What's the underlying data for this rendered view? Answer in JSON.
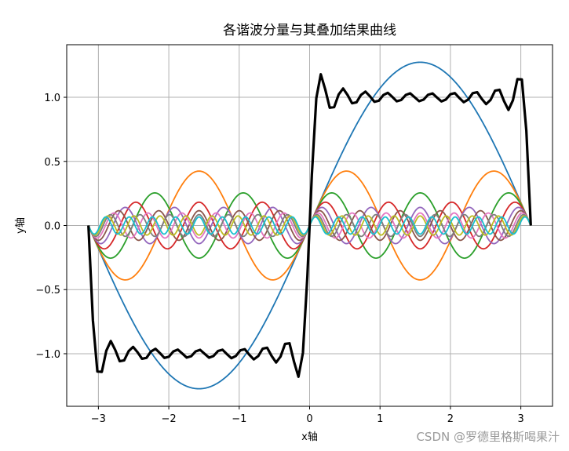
{
  "chart_data": {
    "type": "line",
    "title": "各谐波分量与其叠加结果曲线",
    "xlabel": "x轴",
    "ylabel": "y轴",
    "xlim": [
      -3.45,
      3.45
    ],
    "ylim": [
      -1.41,
      1.41
    ],
    "xticks": [
      -3,
      -2,
      -1,
      0,
      1,
      2,
      3
    ],
    "xtick_labels": [
      "−3",
      "−2",
      "−1",
      "0",
      "1",
      "2",
      "3"
    ],
    "yticks": [
      -1.0,
      -0.5,
      0.0,
      0.5,
      1.0
    ],
    "ytick_labels": [
      "−1.0",
      "−0.5",
      "0.0",
      "0.5",
      "1.0"
    ],
    "grid": true,
    "x_range": [
      -3.14159,
      3.14159
    ],
    "harmonics": [
      {
        "order": 1,
        "amplitude": 1.2732,
        "color": "#1f77b4"
      },
      {
        "order": 3,
        "amplitude": 0.4244,
        "color": "#ff7f0e"
      },
      {
        "order": 5,
        "amplitude": 0.2546,
        "color": "#2ca02c"
      },
      {
        "order": 7,
        "amplitude": 0.1819,
        "color": "#d62728"
      },
      {
        "order": 9,
        "amplitude": 0.1415,
        "color": "#9467bd"
      },
      {
        "order": 11,
        "amplitude": 0.1157,
        "color": "#8c564b"
      },
      {
        "order": 13,
        "amplitude": 0.0979,
        "color": "#e377c2"
      },
      {
        "order": 15,
        "amplitude": 0.0849,
        "color": "#7f7f7f"
      },
      {
        "order": 17,
        "amplitude": 0.0749,
        "color": "#bcbd22"
      },
      {
        "order": 19,
        "amplitude": 0.067,
        "color": "#17becf"
      }
    ],
    "sum_series": {
      "color": "#000000",
      "points": 100
    }
  },
  "watermark": "CSDN @罗德里格斯喝果汁"
}
